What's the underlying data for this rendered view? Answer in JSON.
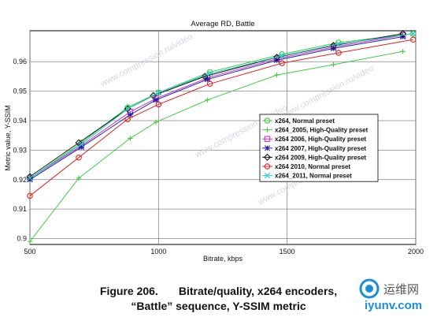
{
  "chart_data": {
    "type": "line",
    "title": "Average RD, Battle",
    "xlabel": "Bitrate, kbps",
    "ylabel": "Metric value, Y-SSIM",
    "xlim": [
      500,
      2000
    ],
    "ylim": [
      0.898,
      0.9705
    ],
    "xticks": [
      500,
      1000,
      1500,
      2000
    ],
    "xtick_labels": [
      "500",
      "1000",
      "1500",
      "2000"
    ],
    "yticks": [
      0.9,
      0.91,
      0.92,
      0.93,
      0.94,
      0.95,
      0.96
    ],
    "ytick_labels": [
      "0.9",
      "0.91",
      "0.92",
      "0.93",
      "0.94",
      "0.95",
      "0.96"
    ],
    "grid": true,
    "legend_position": "right",
    "series": [
      {
        "name": "x264, Normal preset",
        "color": "#3ccc3c",
        "marker": "circle",
        "x": [
          500,
          700,
          880,
          1000,
          1200,
          1480,
          1700,
          1990
        ],
        "y": [
          0.9205,
          0.9325,
          0.9445,
          0.9495,
          0.9565,
          0.9625,
          0.9665,
          0.9695
        ]
      },
      {
        "name": "x264_2005, High-Quality preset",
        "color": "#44cc44",
        "marker": "plus",
        "x": [
          500,
          690,
          890,
          990,
          1190,
          1460,
          1680,
          1950
        ],
        "y": [
          0.899,
          0.9205,
          0.934,
          0.9395,
          0.947,
          0.9555,
          0.959,
          0.9635
        ]
      },
      {
        "name": "x264 2006, High-Quality preset",
        "color": "#cc33cc",
        "marker": "square",
        "x": [
          500,
          700,
          890,
          990,
          1190,
          1460,
          1680,
          1950
        ],
        "y": [
          0.9205,
          0.9315,
          0.943,
          0.9475,
          0.9545,
          0.961,
          0.965,
          0.969
        ]
      },
      {
        "name": "x264 2007, High-Quality preset",
        "color": "#2222aa",
        "marker": "star",
        "x": [
          500,
          700,
          890,
          990,
          1190,
          1460,
          1680,
          1950
        ],
        "y": [
          0.92,
          0.931,
          0.942,
          0.947,
          0.954,
          0.9605,
          0.9645,
          0.9685
        ]
      },
      {
        "name": "x264 2009, High-Quality preset",
        "color": "#111111",
        "marker": "diamond",
        "x": [
          500,
          690,
          880,
          980,
          1180,
          1460,
          1680,
          1950
        ],
        "y": [
          0.921,
          0.9325,
          0.944,
          0.9485,
          0.955,
          0.9615,
          0.9655,
          0.9695
        ]
      },
      {
        "name": "x264 2010, Normal preset",
        "color": "#dd2222",
        "marker": "circle-open",
        "x": [
          500,
          690,
          880,
          1000,
          1200,
          1480,
          1700,
          1990
        ],
        "y": [
          0.9145,
          0.9275,
          0.9405,
          0.9455,
          0.9525,
          0.9595,
          0.963,
          0.9675
        ]
      },
      {
        "name": "x264_2011, Normal preset",
        "color": "#22cccc",
        "marker": "x",
        "x": [
          500,
          700,
          880,
          1000,
          1200,
          1480,
          1700,
          1990
        ],
        "y": [
          0.9205,
          0.932,
          0.944,
          0.9495,
          0.956,
          0.962,
          0.966,
          0.9695
        ]
      }
    ]
  },
  "caption": {
    "figure_number": "Figure 206.",
    "line1": "Bitrate/quality, x264 encoders,",
    "line2": "“Battle” sequence, Y-SSIM metric"
  },
  "watermark": {
    "plot_text": "www.compression.ru/video",
    "logo_text": "运维网",
    "logo_url_text": "iyunv.com"
  }
}
